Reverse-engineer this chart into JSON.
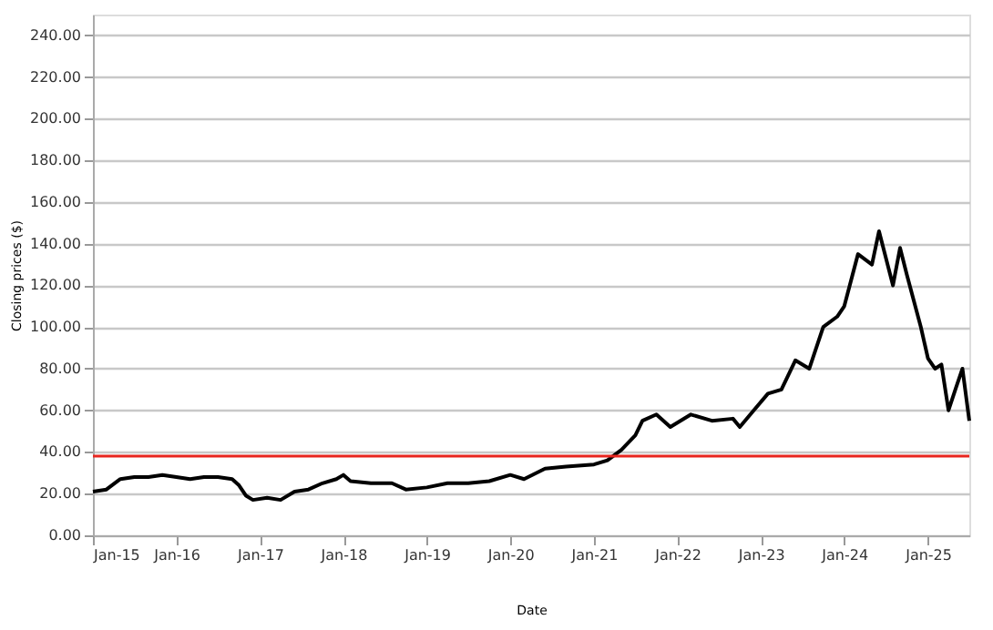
{
  "chart_data": {
    "type": "line",
    "xlabel": "Date",
    "ylabel": "Closing prices ($)",
    "x": [
      "2015-01",
      "2015-03",
      "2015-05",
      "2015-07",
      "2015-09",
      "2015-11",
      "2016-01",
      "2016-03",
      "2016-05",
      "2016-07",
      "2016-09",
      "2016-10",
      "2016-11",
      "2016-12",
      "2017-02",
      "2017-04",
      "2017-06",
      "2017-08",
      "2017-10",
      "2017-12",
      "2018-01",
      "2018-02",
      "2018-05",
      "2018-08",
      "2018-10",
      "2019-01",
      "2019-04",
      "2019-07",
      "2019-10",
      "2020-01",
      "2020-03",
      "2020-06",
      "2020-09",
      "2021-01",
      "2021-03",
      "2021-05",
      "2021-07",
      "2021-08",
      "2021-10",
      "2021-12",
      "2022-03",
      "2022-06",
      "2022-09",
      "2022-10",
      "2022-12",
      "2023-02",
      "2023-04",
      "2023-06",
      "2023-08",
      "2023-10",
      "2023-12",
      "2024-01",
      "2024-03",
      "2024-05",
      "2024-06",
      "2024-08",
      "2024-09",
      "2024-10",
      "2024-12",
      "2025-01",
      "2025-02",
      "2025-03",
      "2025-04",
      "2025-05",
      "2025-06",
      "2025-07"
    ],
    "series": [
      {
        "color": "#000000",
        "values": [
          21,
          22,
          27,
          28,
          28,
          29,
          28,
          27,
          28,
          28,
          27,
          24,
          19,
          17,
          18,
          17,
          21,
          22,
          25,
          27,
          29,
          26,
          25,
          25,
          22,
          23,
          25,
          25,
          26,
          29,
          27,
          32,
          33,
          34,
          36,
          41,
          48,
          55,
          58,
          52,
          58,
          55,
          56,
          52,
          60,
          68,
          70,
          84,
          80,
          100,
          105,
          110,
          135,
          130,
          146,
          120,
          138,
          125,
          100,
          85,
          80,
          82,
          60,
          70,
          80,
          55
        ]
      }
    ],
    "xlim": [
      "2015-01",
      "2025-07"
    ],
    "xticks": [
      {
        "value": "2015-01",
        "label": "Jan-15"
      },
      {
        "value": "2016-01",
        "label": "Jan-16"
      },
      {
        "value": "2017-01",
        "label": "Jan-17"
      },
      {
        "value": "2018-01",
        "label": "Jan-18"
      },
      {
        "value": "2019-01",
        "label": "Jan-19"
      },
      {
        "value": "2020-01",
        "label": "Jan-20"
      },
      {
        "value": "2021-01",
        "label": "Jan-21"
      },
      {
        "value": "2022-01",
        "label": "Jan-22"
      },
      {
        "value": "2023-01",
        "label": "Jan-23"
      },
      {
        "value": "2024-01",
        "label": "Jan-24"
      },
      {
        "value": "2025-01",
        "label": "Jan-25"
      }
    ],
    "ylim": [
      0,
      250
    ],
    "yticks": [
      {
        "value": 0,
        "label": "0.00"
      },
      {
        "value": 20,
        "label": "20.00"
      },
      {
        "value": 40,
        "label": "40.00"
      },
      {
        "value": 60,
        "label": "60.00"
      },
      {
        "value": 80,
        "label": "80.00"
      },
      {
        "value": 100,
        "label": "100.00"
      },
      {
        "value": 120,
        "label": "120.00"
      },
      {
        "value": 140,
        "label": "140.00"
      },
      {
        "value": 160,
        "label": "160.00"
      },
      {
        "value": 180,
        "label": "180.00"
      },
      {
        "value": 200,
        "label": "200.00"
      },
      {
        "value": 220,
        "label": "220.00"
      },
      {
        "value": 240,
        "label": "240.00"
      }
    ],
    "ref_lines": [
      {
        "axis": "y",
        "value": 38,
        "color": "#e8251f",
        "line_style": "solid"
      }
    ],
    "grid": "y",
    "legend": false,
    "marker": "none",
    "line_style": "solid"
  }
}
